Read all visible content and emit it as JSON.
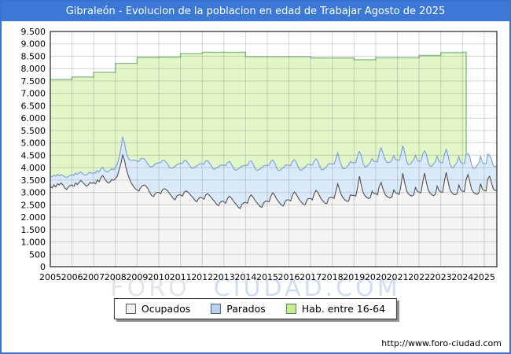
{
  "title": "Gibraleón - Evolucion de la poblacion en edad de Trabajar Agosto de 2025",
  "footer": {
    "url": "http://www.foro-ciudad.com"
  },
  "watermark": {
    "part1": "FORO",
    "part2": "CIUDAD.COM"
  },
  "legend": {
    "items": [
      {
        "label": "Ocupados",
        "fill": "#f2f2f2",
        "border": "#555555"
      },
      {
        "label": "Parados",
        "fill": "#b9d2ee",
        "border": "#556070"
      },
      {
        "label": "Hab. entre 16-64",
        "fill": "#c6ef92",
        "border": "#667766"
      }
    ]
  },
  "colors": {
    "frame_border": "#3a72cc",
    "title_bg": "#3c79d6",
    "title_text": "#ffffff",
    "plot_border": "#222222",
    "gridline": "rgba(120,120,120,0.30)",
    "axis_text": "#000000"
  },
  "chart_data": {
    "type": "area",
    "title": "Gibraleón - Evolucion de la poblacion en edad de Trabajar Agosto de 2025",
    "xlabel": "",
    "ylabel": "",
    "x_domain": [
      2005,
      2025.5833
    ],
    "y_domain": [
      0,
      9500
    ],
    "y_tick_step": 500,
    "x_ticks": [
      2005,
      2006,
      2007,
      2008,
      2009,
      2010,
      2011,
      2012,
      2013,
      2014,
      2015,
      2016,
      2017,
      2018,
      2019,
      2020,
      2021,
      2022,
      2023,
      2024,
      2025
    ],
    "grid": true,
    "legend_position": "bottom",
    "stacking": "Parados is stacked on top of Ocupados; Hab. entre 16-64 is a background step area ending early 2024",
    "monthly_start": 2005.0,
    "series": [
      {
        "name": "Ocupados",
        "kind": "area-monthly",
        "fill": "#f4f4f4",
        "stroke": "#4f4f4f",
        "values": [
          3250,
          3180,
          3300,
          3220,
          3350,
          3300,
          3380,
          3300,
          3180,
          3120,
          3220,
          3280,
          3300,
          3240,
          3380,
          3310,
          3420,
          3480,
          3400,
          3330,
          3250,
          3300,
          3400,
          3360,
          3400,
          3350,
          3500,
          3430,
          3600,
          3680,
          3550,
          3450,
          3380,
          3420,
          3520,
          3490,
          3560,
          3650,
          3900,
          4150,
          4510,
          4300,
          3950,
          3700,
          3500,
          3350,
          3250,
          3150,
          3100,
          3050,
          3200,
          3280,
          3300,
          3250,
          3150,
          3000,
          2880,
          2830,
          2950,
          3000,
          3000,
          2950,
          3100,
          3150,
          3120,
          3050,
          2950,
          2850,
          2750,
          2700,
          2850,
          2900,
          2900,
          2850,
          3000,
          3060,
          3020,
          2950,
          2850,
          2780,
          2680,
          2620,
          2750,
          2800,
          2780,
          2720,
          2900,
          2950,
          2880,
          2800,
          2700,
          2620,
          2520,
          2460,
          2600,
          2650,
          2620,
          2560,
          2750,
          2850,
          2780,
          2680,
          2580,
          2500,
          2400,
          2350,
          2520,
          2580,
          2600,
          2560,
          2780,
          2900,
          2820,
          2700,
          2600,
          2520,
          2430,
          2400,
          2580,
          2640,
          2650,
          2620,
          2850,
          2980,
          2900,
          2760,
          2650,
          2560,
          2480,
          2460,
          2650,
          2700,
          2700,
          2660,
          2900,
          3020,
          2940,
          2800,
          2680,
          2600,
          2520,
          2500,
          2700,
          2750,
          2750,
          2700,
          2950,
          3080,
          3000,
          2850,
          2720,
          2640,
          2560,
          2550,
          2760,
          2800,
          2800,
          2760,
          3050,
          3350,
          3100,
          2900,
          2780,
          2700,
          2640,
          2650,
          2900,
          2880,
          2880,
          2850,
          3200,
          3650,
          3300,
          3000,
          2870,
          2800,
          2750,
          2780,
          3050,
          2950,
          2950,
          2900,
          3250,
          3400,
          3150,
          2950,
          2850,
          2800,
          2780,
          2820,
          3100,
          2980,
          2950,
          2920,
          3300,
          3780,
          3400,
          3080,
          2950,
          2880,
          2850,
          2900,
          3200,
          3050,
          3000,
          2980,
          3400,
          3780,
          3420,
          3100,
          2980,
          2900,
          2870,
          2920,
          3250,
          3080,
          3020,
          3000,
          3450,
          3810,
          3450,
          3120,
          3000,
          2920,
          2900,
          2950,
          3300,
          3100,
          3050,
          3020,
          3500,
          3720,
          3450,
          3130,
          3010,
          2950,
          2920,
          2980,
          3350,
          3120,
          3080,
          3050,
          3550,
          3650,
          3400,
          3150,
          3080,
          3080
        ]
      },
      {
        "name": "Parados",
        "kind": "area-monthly",
        "stacked_on": "Ocupados",
        "fill": "#daeafa",
        "stroke": "#7ea6d8",
        "values": [
          420,
          450,
          400,
          430,
          380,
          360,
          340,
          380,
          450,
          480,
          430,
          400,
          420,
          450,
          400,
          420,
          380,
          350,
          340,
          380,
          450,
          470,
          420,
          400,
          400,
          430,
          380,
          400,
          360,
          340,
          330,
          380,
          450,
          480,
          440,
          420,
          450,
          480,
          500,
          600,
          740,
          700,
          650,
          700,
          800,
          950,
          1050,
          1150,
          1150,
          1200,
          1150,
          1100,
          1050,
          1000,
          980,
          1050,
          1150,
          1250,
          1200,
          1180,
          1200,
          1250,
          1200,
          1150,
          1100,
          1080,
          1050,
          1120,
          1250,
          1350,
          1280,
          1250,
          1280,
          1320,
          1280,
          1230,
          1180,
          1150,
          1130,
          1200,
          1350,
          1450,
          1380,
          1350,
          1380,
          1420,
          1380,
          1330,
          1300,
          1280,
          1250,
          1320,
          1480,
          1570,
          1500,
          1450,
          1480,
          1520,
          1450,
          1400,
          1380,
          1350,
          1330,
          1400,
          1550,
          1650,
          1550,
          1500,
          1500,
          1530,
          1450,
          1380,
          1350,
          1320,
          1300,
          1380,
          1520,
          1600,
          1500,
          1450,
          1450,
          1480,
          1400,
          1330,
          1300,
          1270,
          1250,
          1330,
          1470,
          1550,
          1450,
          1400,
          1400,
          1430,
          1350,
          1300,
          1280,
          1250,
          1230,
          1300,
          1440,
          1520,
          1420,
          1380,
          1380,
          1400,
          1320,
          1280,
          1250,
          1220,
          1200,
          1280,
          1420,
          1500,
          1400,
          1350,
          1350,
          1380,
          1300,
          1250,
          1220,
          1200,
          1180,
          1260,
          1400,
          1450,
          1350,
          1320,
          1320,
          1350,
          1280,
          1000,
          1200,
          1180,
          1160,
          1240,
          1380,
          1420,
          1320,
          1300,
          1300,
          1330,
          1350,
          1400,
          1450,
          1420,
          1380,
          1400,
          1450,
          1480,
          1380,
          1350,
          1350,
          1380,
          1250,
          1110,
          1230,
          1200,
          1180,
          1250,
          1380,
          1420,
          1300,
          1250,
          1250,
          1280,
          1150,
          900,
          1120,
          1100,
          1080,
          1150,
          1280,
          1320,
          1220,
          1180,
          1180,
          1200,
          1080,
          920,
          1050,
          1030,
          1010,
          1080,
          1220,
          1260,
          1150,
          1120,
          1120,
          1150,
          1030,
          850,
          1000,
          980,
          960,
          1030,
          1170,
          1210,
          1100,
          1080,
          1080,
          1100,
          1000,
          850,
          950,
          930,
          960,
          1000
        ]
      },
      {
        "name": "Hab. entre 16-64",
        "kind": "step-annual",
        "fill": "#e2f6c8",
        "stroke": "#8abd85",
        "end_x": 2024.17,
        "points": [
          [
            2005,
            7560
          ],
          [
            2006,
            7660
          ],
          [
            2007,
            7850
          ],
          [
            2008,
            8210
          ],
          [
            2009,
            8450
          ],
          [
            2010,
            8460
          ],
          [
            2011,
            8600
          ],
          [
            2012,
            8660
          ],
          [
            2013,
            8660
          ],
          [
            2014,
            8480
          ],
          [
            2015,
            8480
          ],
          [
            2016,
            8480
          ],
          [
            2017,
            8430
          ],
          [
            2018,
            8430
          ],
          [
            2019,
            8360
          ],
          [
            2020,
            8440
          ],
          [
            2021,
            8440
          ],
          [
            2022,
            8530
          ],
          [
            2023,
            8650
          ],
          [
            2024,
            8660
          ]
        ]
      }
    ]
  }
}
